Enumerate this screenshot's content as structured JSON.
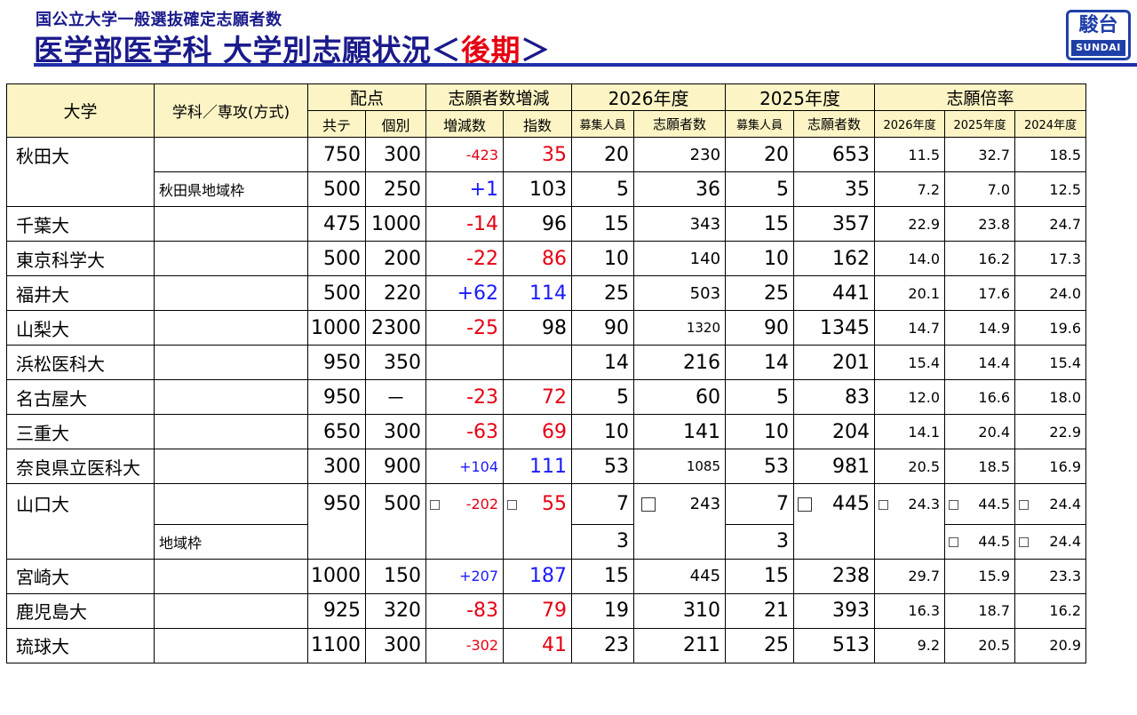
{
  "header": {
    "subtitle": "国公立大学一般選抜確定志願者数",
    "title_main": "医学部医学科 大学別志願状況",
    "title_lt": "＜",
    "title_accent": "後期",
    "title_gt": "＞",
    "logo_kanji": "駿台",
    "logo_latin": "SUNDAI",
    "accent_color": "#e60012",
    "brand_color": "#1f2fa8"
  },
  "table": {
    "headers": {
      "univ": "大学",
      "dept": "学科／専攻(方式)",
      "haiten": "配点",
      "kyote": "共テ",
      "kobetsu": "個別",
      "zogen_group": "志願者数増減",
      "zogen": "増減数",
      "shisu": "指数",
      "y2026": "2026年度",
      "y2025": "2025年度",
      "boshu": "募集人員",
      "shigansha": "志願者数",
      "bairitsu": "志願倍率",
      "b2026": "2026年度",
      "b2025": "2025年度",
      "b2024": "2024年度"
    },
    "rows": [
      {
        "univ": "秋田大",
        "dept": "",
        "kyote": "750",
        "kobetsu": "300",
        "zogen": "-423",
        "shisu": "35",
        "boshu26": "20",
        "shigan26": "230",
        "boshu25": "20",
        "shigan25": "653",
        "b26": "11.5",
        "b25": "32.7",
        "b24": "18.5"
      },
      {
        "univ": "",
        "dept": "秋田県地域枠",
        "kyote": "500",
        "kobetsu": "250",
        "zogen": "+1",
        "shisu": "103",
        "boshu26": "5",
        "shigan26": "36",
        "boshu25": "5",
        "shigan25": "35",
        "b26": "7.2",
        "b25": "7.0",
        "b24": "12.5"
      },
      {
        "univ": "千葉大",
        "dept": "",
        "kyote": "475",
        "kobetsu": "1000",
        "zogen": "-14",
        "shisu": "96",
        "boshu26": "15",
        "shigan26": "343",
        "boshu25": "15",
        "shigan25": "357",
        "b26": "22.9",
        "b25": "23.8",
        "b24": "24.7"
      },
      {
        "univ": "東京科学大",
        "dept": "",
        "kyote": "500",
        "kobetsu": "200",
        "zogen": "-22",
        "shisu": "86",
        "boshu26": "10",
        "shigan26": "140",
        "boshu25": "10",
        "shigan25": "162",
        "b26": "14.0",
        "b25": "16.2",
        "b24": "17.3"
      },
      {
        "univ": "福井大",
        "dept": "",
        "kyote": "500",
        "kobetsu": "220",
        "zogen": "+62",
        "shisu": "114",
        "boshu26": "25",
        "shigan26": "503",
        "boshu25": "25",
        "shigan25": "441",
        "b26": "20.1",
        "b25": "17.6",
        "b24": "24.0"
      },
      {
        "univ": "山梨大",
        "dept": "",
        "kyote": "1000",
        "kobetsu": "2300",
        "zogen": "-25",
        "shisu": "98",
        "boshu26": "90",
        "shigan26": "1320",
        "boshu25": "90",
        "shigan25": "1345",
        "b26": "14.7",
        "b25": "14.9",
        "b24": "19.6"
      },
      {
        "univ": "浜松医科大",
        "dept": "",
        "kyote": "950",
        "kobetsu": "350",
        "zogen": "",
        "shisu": "",
        "boshu26": "14",
        "shigan26": "216",
        "boshu25": "14",
        "shigan25": "201",
        "b26": "15.4",
        "b25": "14.4",
        "b24": "15.4"
      },
      {
        "univ": "名古屋大",
        "dept": "",
        "kyote": "950",
        "kobetsu": "－",
        "zogen": "-23",
        "shisu": "72",
        "boshu26": "5",
        "shigan26": "60",
        "boshu25": "5",
        "shigan25": "83",
        "b26": "12.0",
        "b25": "16.6",
        "b24": "18.0"
      },
      {
        "univ": "三重大",
        "dept": "",
        "kyote": "650",
        "kobetsu": "300",
        "zogen": "-63",
        "shisu": "69",
        "boshu26": "10",
        "shigan26": "141",
        "boshu25": "10",
        "shigan25": "204",
        "b26": "14.1",
        "b25": "20.4",
        "b24": "22.9"
      },
      {
        "univ": "奈良県立医科大",
        "dept": "",
        "kyote": "300",
        "kobetsu": "900",
        "zogen": "+104",
        "shisu": "111",
        "boshu26": "53",
        "shigan26": "1085",
        "boshu25": "53",
        "shigan25": "981",
        "b26": "20.5",
        "b25": "18.5",
        "b24": "16.9"
      }
    ],
    "yamaguchi": {
      "univ": "山口大",
      "dept2": "地域枠",
      "kyote": "950",
      "kobetsu": "500",
      "zogen": "-202",
      "shisu": "55",
      "boshu26a": "7",
      "boshu26b": "3",
      "shigan26": "243",
      "boshu25a": "7",
      "boshu25b": "3",
      "shigan25": "445",
      "b26": "24.3",
      "b25a": "44.5",
      "b24a": "24.4",
      "b25b": "44.5",
      "b24b": "24.4"
    },
    "rows2": [
      {
        "univ": "宮崎大",
        "dept": "",
        "kyote": "1000",
        "kobetsu": "150",
        "zogen": "+207",
        "shisu": "187",
        "boshu26": "15",
        "shigan26": "445",
        "boshu25": "15",
        "shigan25": "238",
        "b26": "29.7",
        "b25": "15.9",
        "b24": "23.3"
      },
      {
        "univ": "鹿児島大",
        "dept": "",
        "kyote": "925",
        "kobetsu": "320",
        "zogen": "-83",
        "shisu": "79",
        "boshu26": "19",
        "shigan26": "310",
        "boshu25": "21",
        "shigan25": "393",
        "b26": "16.3",
        "b25": "18.7",
        "b24": "16.2"
      },
      {
        "univ": "琉球大",
        "dept": "",
        "kyote": "1100",
        "kobetsu": "300",
        "zogen": "-302",
        "shisu": "41",
        "boshu26": "23",
        "shigan26": "211",
        "boshu25": "25",
        "shigan25": "513",
        "b26": "9.2",
        "b25": "20.5",
        "b24": "20.9"
      }
    ]
  }
}
